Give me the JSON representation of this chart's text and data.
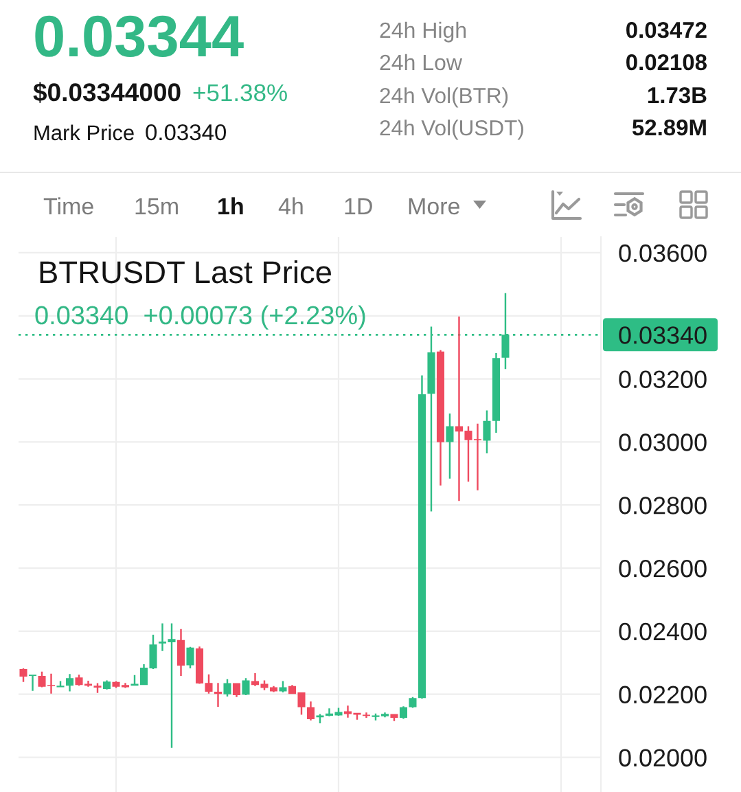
{
  "chart_data": {
    "type": "candlestick",
    "title": "BTRUSDT Last Price",
    "subtitle": "0.03340  +0.00073 (+2.23%)",
    "annotations": [
      "0.03344",
      "$0.03344000",
      "+51.38%",
      "Mark Price",
      "0.03340",
      "24h High",
      "0.03472",
      "24h Low",
      "0.02108",
      "24h Vol(BTR)",
      "1.73B",
      "24h Vol(USDT)",
      "52.89M",
      "Time",
      "15m",
      "1h",
      "4h",
      "1D",
      "More"
    ],
    "categories": [
      null,
      null,
      null,
      null,
      null,
      null,
      null,
      null,
      null,
      null,
      null,
      null,
      null,
      null,
      null,
      null,
      null,
      null,
      null,
      null,
      null,
      null,
      null,
      null,
      null,
      null,
      null,
      null,
      null,
      null,
      null,
      null,
      null,
      null,
      null,
      null,
      null,
      null,
      null,
      null,
      null,
      null,
      null,
      null,
      null,
      null,
      null,
      null,
      null,
      null,
      null,
      null,
      null
    ],
    "ohlc": [
      [
        0.0228,
        0.02282,
        0.02239,
        0.02256
      ],
      [
        0.02258,
        0.02262,
        0.02211,
        0.02262
      ],
      [
        0.02258,
        0.02272,
        0.02222,
        0.02224
      ],
      [
        0.02229,
        0.02265,
        0.02202,
        0.02226
      ],
      [
        0.02222,
        0.02242,
        0.02222,
        0.02227
      ],
      [
        0.02227,
        0.02264,
        0.02209,
        0.02251
      ],
      [
        0.02253,
        0.02262,
        0.02227,
        0.02229
      ],
      [
        0.02233,
        0.02243,
        0.02224,
        0.02227
      ],
      [
        0.02227,
        0.02235,
        0.02204,
        0.02221
      ],
      [
        0.02217,
        0.02244,
        0.02215,
        0.0224
      ],
      [
        0.02239,
        0.02241,
        0.0222,
        0.02224
      ],
      [
        0.02229,
        0.02236,
        0.0222,
        0.02222
      ],
      [
        0.02227,
        0.02261,
        0.02227,
        0.02233
      ],
      [
        0.02229,
        0.02295,
        0.02229,
        0.02284
      ],
      [
        0.02282,
        0.02389,
        0.0228,
        0.02358
      ],
      [
        0.02361,
        0.02425,
        0.02337,
        0.02367
      ],
      [
        0.02365,
        0.02425,
        0.0203,
        0.02375
      ],
      [
        0.02372,
        0.02407,
        0.02258,
        0.02291
      ],
      [
        0.02292,
        0.0235,
        0.02282,
        0.02348
      ],
      [
        0.02345,
        0.02351,
        0.02233,
        0.02234
      ],
      [
        0.02236,
        0.02263,
        0.02202,
        0.02208
      ],
      [
        0.02208,
        0.02236,
        0.0216,
        0.02201
      ],
      [
        0.022,
        0.02248,
        0.02193,
        0.02235
      ],
      [
        0.02235,
        0.02235,
        0.02191,
        0.02197
      ],
      [
        0.02199,
        0.02251,
        0.02197,
        0.02244
      ],
      [
        0.02242,
        0.02267,
        0.02226,
        0.02229
      ],
      [
        0.02233,
        0.02244,
        0.02213,
        0.0222
      ],
      [
        0.02222,
        0.02226,
        0.02207,
        0.02209
      ],
      [
        0.02209,
        0.02242,
        0.02206,
        0.02222
      ],
      [
        0.02226,
        0.02229,
        0.02201,
        0.02201
      ],
      [
        0.02206,
        0.02206,
        0.02135,
        0.02159
      ],
      [
        0.02159,
        0.02177,
        0.02117,
        0.02121
      ],
      [
        0.02127,
        0.02137,
        0.02108,
        0.02133
      ],
      [
        0.02132,
        0.02155,
        0.0213,
        0.02139
      ],
      [
        0.02133,
        0.02157,
        0.02132,
        0.02144
      ],
      [
        0.02146,
        0.02164,
        0.02126,
        0.02137
      ],
      [
        0.02141,
        0.02141,
        0.02119,
        0.02135
      ],
      [
        0.02135,
        0.02142,
        0.02125,
        0.02131
      ],
      [
        0.02128,
        0.02139,
        0.02117,
        0.02133
      ],
      [
        0.0213,
        0.02142,
        0.02127,
        0.02138
      ],
      [
        0.02137,
        0.02137,
        0.02115,
        0.02125
      ],
      [
        0.02125,
        0.02162,
        0.02122,
        0.02159
      ],
      [
        0.02159,
        0.02191,
        0.02157,
        0.02188
      ],
      [
        0.02188,
        0.03211,
        0.02186,
        0.03151
      ],
      [
        0.03153,
        0.03366,
        0.0278,
        0.03284
      ],
      [
        0.03287,
        0.03291,
        0.02862,
        0.02999
      ],
      [
        0.03,
        0.0309,
        0.02884,
        0.0305
      ],
      [
        0.0305,
        0.03398,
        0.02813,
        0.03033
      ],
      [
        0.03036,
        0.0305,
        0.02874,
        0.03006
      ],
      [
        0.03009,
        0.03058,
        0.02847,
        0.03005
      ],
      [
        0.03004,
        0.031,
        0.02964,
        0.03067
      ],
      [
        0.03067,
        0.03282,
        0.03029,
        0.03266
      ],
      [
        0.03267,
        0.03472,
        0.03231,
        0.0334
      ]
    ],
    "colors": [
      "#ef4a5f",
      "#2ebd85",
      "#ef4a5f",
      "#ef4a5f",
      "#2ebd85",
      "#2ebd85",
      "#ef4a5f",
      "#ef4a5f",
      "#ef4a5f",
      "#2ebd85",
      "#ef4a5f",
      "#ef4a5f",
      "#2ebd85",
      "#2ebd85",
      "#2ebd85",
      "#2ebd85",
      "#2ebd85",
      "#ef4a5f",
      "#2ebd85",
      "#ef4a5f",
      "#ef4a5f",
      "#ef4a5f",
      "#2ebd85",
      "#ef4a5f",
      "#2ebd85",
      "#ef4a5f",
      "#ef4a5f",
      "#ef4a5f",
      "#2ebd85",
      "#ef4a5f",
      "#ef4a5f",
      "#ef4a5f",
      "#2ebd85",
      "#2ebd85",
      "#2ebd85",
      "#ef4a5f",
      "#ef4a5f",
      "#ef4a5f",
      "#2ebd85",
      "#2ebd85",
      "#ef4a5f",
      "#2ebd85",
      "#2ebd85",
      "#2ebd85",
      "#2ebd85",
      "#ef4a5f",
      "#2ebd85",
      "#ef4a5f",
      "#ef4a5f",
      "#ef4a5f",
      "#2ebd85",
      "#2ebd85",
      "#2ebd85"
    ],
    "ylim": [
      0.0189,
      0.0365
    ],
    "yticks": [
      {
        "value": 0.02,
        "label": "0.02000"
      },
      {
        "value": 0.022,
        "label": "0.02200"
      },
      {
        "value": 0.024,
        "label": "0.02400"
      },
      {
        "value": 0.026,
        "label": "0.02600"
      },
      {
        "value": 0.028,
        "label": "0.02800"
      },
      {
        "value": 0.03,
        "label": "0.03000"
      },
      {
        "value": 0.032,
        "label": "0.03200"
      },
      {
        "value": 0.034,
        "label": null
      },
      {
        "value": 0.036,
        "label": "0.03600"
      }
    ],
    "grid": true,
    "tick_labels": "y",
    "ref_lines": [
      {
        "axis": "y",
        "value": 0.0334,
        "label": "0.03340",
        "color": "#2ebd85",
        "line_style": "dotted"
      }
    ]
  }
}
